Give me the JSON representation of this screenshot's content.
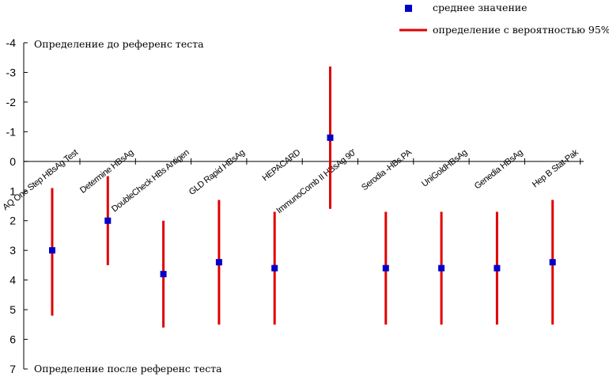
{
  "chart_data": {
    "type": "scatter",
    "title": "",
    "xlabel": "",
    "ylabel": "",
    "ylim": [
      -4,
      7
    ],
    "y_inverted": true,
    "y_ticks": [
      -4,
      -3,
      -2,
      -1,
      0,
      1,
      2,
      3,
      4,
      5,
      6,
      7
    ],
    "categories": [
      "AQ One Step HBsAg Test",
      "Determine HBsAg",
      "DoubleCheck HBs Antigen",
      "GLD Rapid HBsAg",
      "HEPACARD",
      "ImmunoComb II HBsAg 90'",
      "Serodia -HBs.PA",
      "UniGoldHBsAg",
      "Genedia HBsAg",
      "Hep B Stat-Pak"
    ],
    "series": [
      {
        "name": "среднее значение",
        "kind": "mean",
        "color": "#0000cc",
        "values": [
          3.0,
          2.0,
          3.8,
          3.4,
          3.6,
          -0.8,
          3.6,
          3.6,
          3.6,
          3.4
        ]
      },
      {
        "name": "определение с вероятностью 95%",
        "kind": "interval",
        "color": "#e00000",
        "low": [
          0.9,
          0.5,
          2.0,
          1.3,
          1.7,
          -3.2,
          1.7,
          1.7,
          1.7,
          1.3
        ],
        "high": [
          5.2,
          3.5,
          5.6,
          5.5,
          5.5,
          1.6,
          5.5,
          5.5,
          5.5,
          5.5
        ]
      }
    ],
    "annotations": {
      "top": "Определение до референс теста",
      "bottom": "Определение после референс теста"
    },
    "legend": {
      "position": "top-right",
      "items": [
        {
          "label": "среднее значение",
          "icon": "blue-square-marker"
        },
        {
          "label": "определение с вероятностью 95%",
          "icon": "red-line"
        }
      ]
    }
  }
}
